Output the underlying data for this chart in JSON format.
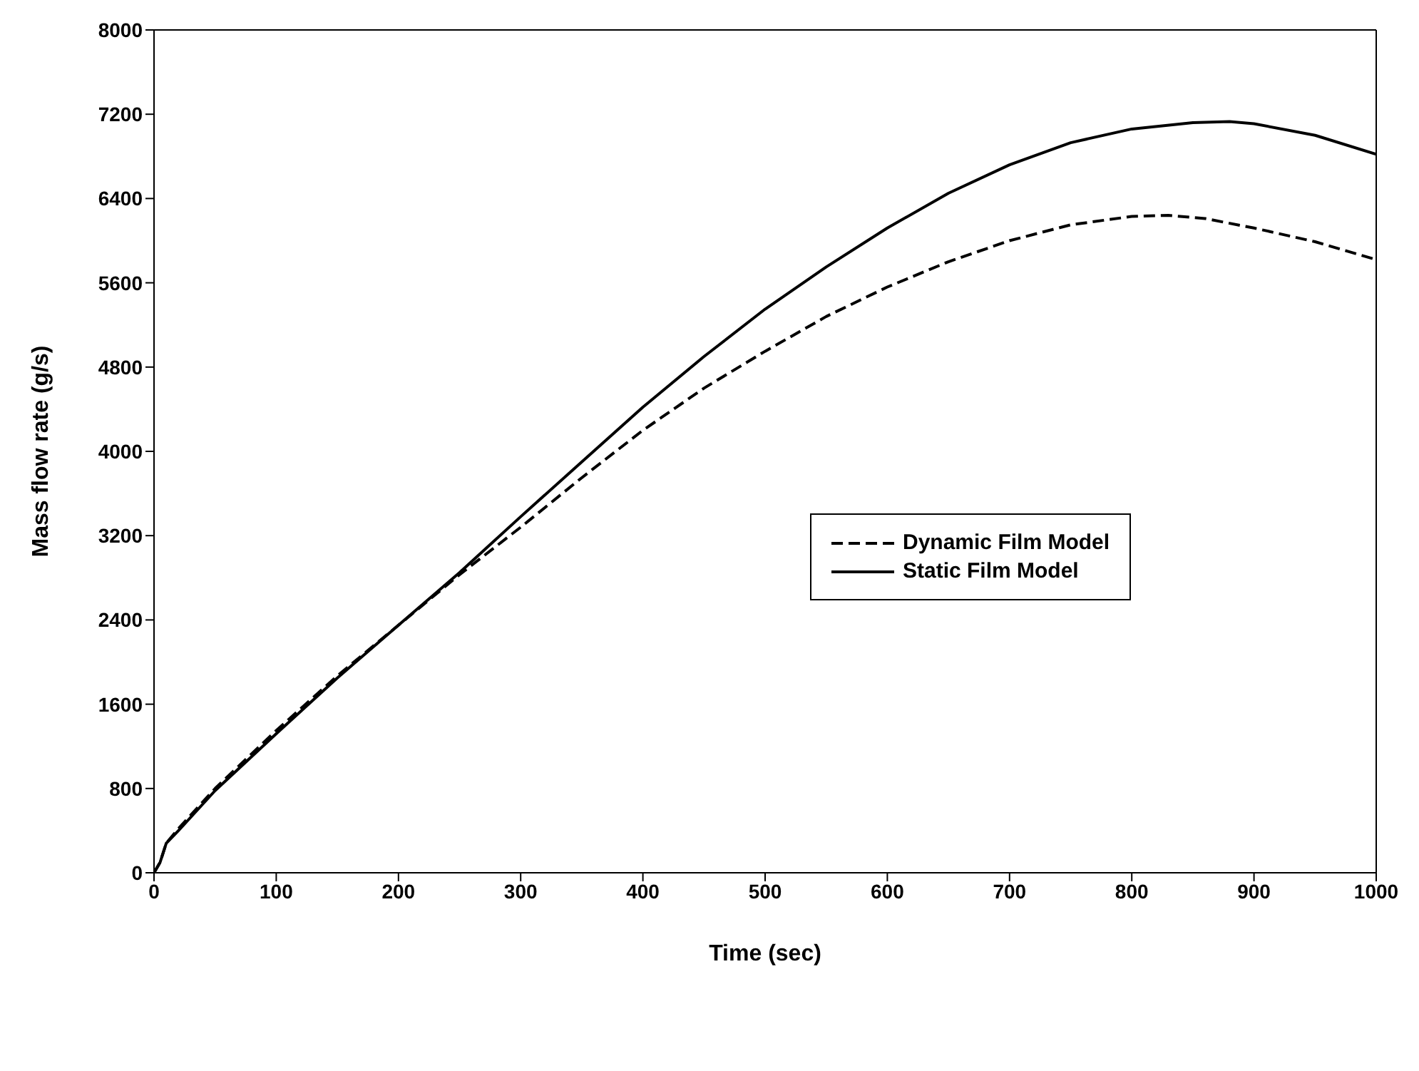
{
  "chart_data": {
    "type": "line",
    "xlabel": "Time (sec)",
    "ylabel": "Mass flow rate (g/s)",
    "xlim": [
      0,
      1000
    ],
    "xticks": [
      0,
      100,
      200,
      300,
      400,
      500,
      600,
      700,
      800,
      900,
      1000
    ],
    "ylim": [
      0,
      8000
    ],
    "yticks": [
      0,
      800,
      1600,
      2400,
      3200,
      4000,
      4800,
      5600,
      6400,
      7200,
      8000
    ],
    "legend": "right",
    "series": [
      {
        "name": "Dynamic Film Model",
        "color": "#000000",
        "line_style": "dashed",
        "x": [
          0,
          5,
          10,
          20,
          50,
          100,
          150,
          200,
          250,
          300,
          350,
          400,
          450,
          500,
          550,
          600,
          650,
          700,
          750,
          800,
          830,
          860,
          900,
          950,
          1000
        ],
        "values": [
          0,
          100,
          280,
          420,
          800,
          1350,
          1870,
          2350,
          2830,
          3280,
          3750,
          4200,
          4600,
          4950,
          5280,
          5560,
          5800,
          6000,
          6150,
          6230,
          6240,
          6210,
          6120,
          5990,
          5820
        ]
      },
      {
        "name": "Static Film Model",
        "color": "#000000",
        "line_style": "solid",
        "x": [
          0,
          5,
          10,
          20,
          50,
          100,
          150,
          200,
          250,
          300,
          350,
          400,
          450,
          500,
          550,
          600,
          650,
          700,
          750,
          800,
          850,
          880,
          900,
          950,
          1000
        ],
        "values": [
          0,
          100,
          280,
          400,
          780,
          1320,
          1850,
          2350,
          2850,
          3380,
          3900,
          4420,
          4900,
          5350,
          5750,
          6120,
          6450,
          6720,
          6930,
          7060,
          7120,
          7130,
          7110,
          7000,
          6820
        ]
      }
    ]
  }
}
